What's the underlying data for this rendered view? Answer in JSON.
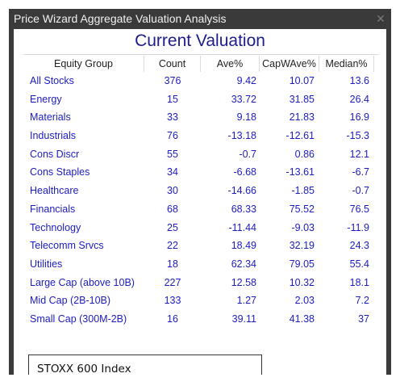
{
  "window": {
    "title": "Price Wizard Aggregate Valuation Analysis",
    "close_glyph": "✕"
  },
  "heading": "Current Valuation",
  "table": {
    "columns": [
      "Equity Group",
      "Count",
      "Ave%",
      "CapWAve%",
      "Median%"
    ],
    "rows": [
      {
        "group": "All Stocks",
        "count": "376",
        "ave": "9.42",
        "capw": "10.07",
        "median": "13.6"
      },
      {
        "group": "Energy",
        "count": "15",
        "ave": "33.72",
        "capw": "31.85",
        "median": "26.4"
      },
      {
        "group": "Materials",
        "count": "33",
        "ave": "9.18",
        "capw": "21.83",
        "median": "16.9"
      },
      {
        "group": "Industrials",
        "count": "76",
        "ave": "-13.18",
        "capw": "-12.61",
        "median": "-15.3"
      },
      {
        "group": "Cons Discr",
        "count": "55",
        "ave": "-0.7",
        "capw": "0.86",
        "median": "12.1"
      },
      {
        "group": "Cons Staples",
        "count": "34",
        "ave": "-6.68",
        "capw": "-13.61",
        "median": "-6.7"
      },
      {
        "group": "Healthcare",
        "count": "30",
        "ave": "-14.66",
        "capw": "-1.85",
        "median": "-0.7"
      },
      {
        "group": "Financials",
        "count": "68",
        "ave": "68.33",
        "capw": "75.52",
        "median": "76.5"
      },
      {
        "group": "Technology",
        "count": "25",
        "ave": "-11.44",
        "capw": "-9.03",
        "median": "-11.9"
      },
      {
        "group": "Telecomm Srvcs",
        "count": "22",
        "ave": "18.49",
        "capw": "32.19",
        "median": "24.3"
      },
      {
        "group": "Utilities",
        "count": "18",
        "ave": "62.34",
        "capw": "79.05",
        "median": "55.4"
      },
      {
        "group": "Large Cap (above 10B)",
        "count": "227",
        "ave": "12.58",
        "capw": "10.32",
        "median": "18.1"
      },
      {
        "group": "Mid Cap (2B-10B)",
        "count": "133",
        "ave": "1.27",
        "capw": "2.03",
        "median": "7.2"
      },
      {
        "group": "Small Cap (300M-2B)",
        "count": "16",
        "ave": "39.11",
        "capw": "41.38",
        "median": "37"
      }
    ]
  },
  "index_box": {
    "label": "STOXX 600 Index"
  },
  "colors": {
    "title_bar": "#3a3a3a",
    "heading": "#1c1c8f",
    "values": "#1c1cc0"
  }
}
